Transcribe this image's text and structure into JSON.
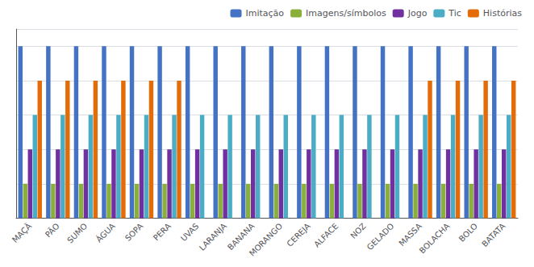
{
  "chart_data": {
    "type": "bar",
    "categories": [
      "MAÇÃ",
      "PÃO",
      "SUMO",
      "ÁGUA",
      "SOPA",
      "PERA",
      "UVAS",
      "LARANJA",
      "BANANA",
      "MORANGO",
      "CEREJA",
      "ALFACE",
      "NOZ",
      "GELADO",
      "MASSA",
      "BOLACHA",
      "BOLO",
      "BATATA"
    ],
    "series": [
      {
        "name": "Imitação",
        "color": "#4472C4",
        "values": [
          10,
          10,
          10,
          10,
          10,
          10,
          10,
          10,
          10,
          10,
          10,
          10,
          10,
          10,
          10,
          10,
          10,
          10
        ]
      },
      {
        "name": "Imagens/símbolos",
        "color": "#8AAF3A",
        "values": [
          2,
          2,
          2,
          2,
          2,
          2,
          2,
          2,
          2,
          2,
          2,
          2,
          2,
          2,
          2,
          2,
          2,
          2
        ]
      },
      {
        "name": "Jogo",
        "color": "#7030A0",
        "values": [
          4,
          4,
          4,
          4,
          4,
          4,
          4,
          4,
          4,
          4,
          4,
          4,
          4,
          4,
          4,
          4,
          4,
          4
        ]
      },
      {
        "name": "Tic",
        "color": "#4BACC6",
        "values": [
          6,
          6,
          6,
          6,
          6,
          6,
          6,
          6,
          6,
          6,
          6,
          6,
          6,
          6,
          6,
          6,
          6,
          6
        ]
      },
      {
        "name": "Histórias",
        "color": "#E36C09",
        "values": [
          8,
          8,
          8,
          8,
          8,
          8,
          0,
          0,
          0,
          0,
          0,
          0,
          0,
          0,
          8,
          8,
          8,
          8
        ]
      }
    ],
    "ylim": [
      0,
      11
    ],
    "yticks": [
      0,
      2,
      4,
      6,
      8,
      10
    ],
    "grid": true,
    "legend": "upper right",
    "tick_labels": "x"
  }
}
